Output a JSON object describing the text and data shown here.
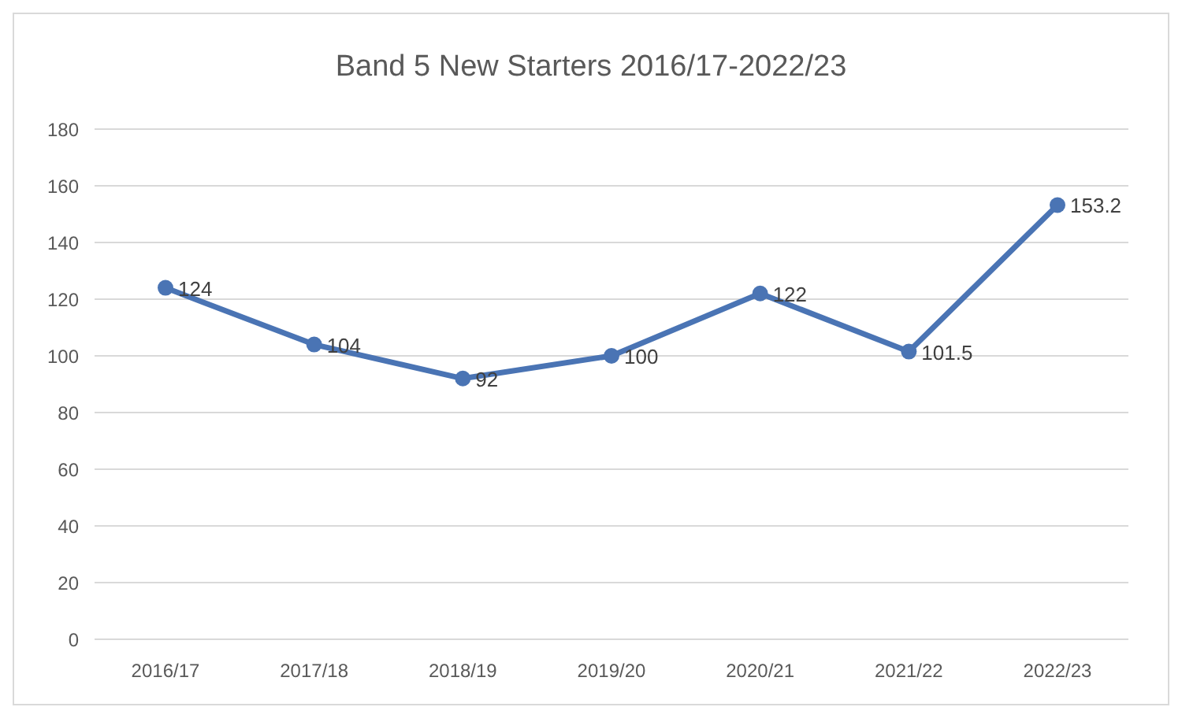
{
  "chart_data": {
    "type": "line",
    "title": "Band 5 New Starters 2016/17-2022/23",
    "categories": [
      "2016/17",
      "2017/18",
      "2018/19",
      "2019/20",
      "2020/21",
      "2021/22",
      "2022/23"
    ],
    "series": [
      {
        "color": "#4a74b4",
        "values": [
          124,
          104,
          92,
          100,
          122,
          101.5,
          153.2
        ]
      }
    ],
    "ylim": [
      0,
      180
    ],
    "yticks": [
      0,
      20,
      40,
      60,
      80,
      100,
      120,
      140,
      160,
      180
    ],
    "grid": "y",
    "marker": "circle",
    "line_style": "solid",
    "data_labels": true
  }
}
